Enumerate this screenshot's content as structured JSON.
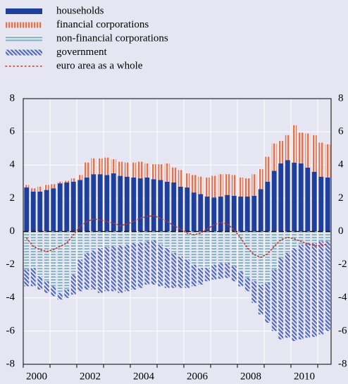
{
  "chart_data": {
    "type": "bar",
    "categories": [
      "2000",
      null,
      null,
      null,
      null,
      null,
      null,
      null,
      "2002",
      null,
      null,
      null,
      null,
      null,
      null,
      null,
      "2004",
      null,
      null,
      null,
      null,
      null,
      null,
      null,
      "2006",
      null,
      null,
      null,
      null,
      null,
      null,
      null,
      "2008",
      null,
      null,
      null,
      null,
      null,
      null,
      null,
      "2010",
      null,
      null,
      null,
      null,
      null
    ],
    "series": [
      {
        "name": "households",
        "type": "bar",
        "pattern": "solid",
        "color": "#1f3f9c",
        "values": [
          2.65,
          2.4,
          2.4,
          2.5,
          2.6,
          2.9,
          2.95,
          3.0,
          3.1,
          3.25,
          3.45,
          3.45,
          3.4,
          3.5,
          3.35,
          3.3,
          3.25,
          3.2,
          3.25,
          3.15,
          3.1,
          3.0,
          2.95,
          2.7,
          2.65,
          2.35,
          2.25,
          2.1,
          2.05,
          2.1,
          2.2,
          2.15,
          2.1,
          2.1,
          2.15,
          2.55,
          3.0,
          3.65,
          4.1,
          4.3,
          4.15,
          4.1,
          3.85,
          3.6,
          3.3,
          3.25
        ]
      },
      {
        "name": "financial corporations",
        "type": "bar",
        "pattern": "vertical",
        "color": "#d9765a",
        "values": [
          0.15,
          0.2,
          0.3,
          0.3,
          0.25,
          0.1,
          0.1,
          0.2,
          0.3,
          0.9,
          0.95,
          0.95,
          1.05,
          0.85,
          0.85,
          0.85,
          0.9,
          1.0,
          0.85,
          0.9,
          0.95,
          1.1,
          0.9,
          1.0,
          0.85,
          1.05,
          1.05,
          1.15,
          1.3,
          1.35,
          1.25,
          1.25,
          1.15,
          1.1,
          1.3,
          1.2,
          1.5,
          1.65,
          1.35,
          1.5,
          2.25,
          1.85,
          2.05,
          2.2,
          2.05,
          2.0
        ]
      },
      {
        "name": "non-financial corporations",
        "type": "bar",
        "pattern": "horizontal",
        "color": "#8fb3c8",
        "values": [
          -2.3,
          -2.2,
          -2.7,
          -3.0,
          -3.3,
          -3.7,
          -3.5,
          -2.6,
          -1.7,
          -1.3,
          -1.15,
          -1.0,
          -0.95,
          -0.9,
          -0.85,
          -0.8,
          -0.7,
          -0.65,
          -0.6,
          -0.55,
          -0.8,
          -1.0,
          -1.3,
          -1.5,
          -1.7,
          -2.0,
          -2.2,
          -2.2,
          -2.0,
          -1.9,
          -1.9,
          -2.1,
          -2.4,
          -2.8,
          -3.0,
          -3.2,
          -3.1,
          -2.3,
          -1.6,
          -1.3,
          -1.0,
          -0.8,
          -0.7,
          -0.7,
          -0.6,
          -0.6
        ]
      },
      {
        "name": "government",
        "type": "bar",
        "pattern": "diagonal",
        "color": "#5a6fc0",
        "values": [
          -1.0,
          -1.1,
          -0.8,
          -0.7,
          -0.6,
          -0.4,
          -0.5,
          -1.2,
          -1.9,
          -2.2,
          -2.35,
          -2.7,
          -2.65,
          -2.7,
          -2.85,
          -2.8,
          -2.8,
          -2.75,
          -2.6,
          -2.65,
          -2.5,
          -2.4,
          -2.1,
          -1.9,
          -1.7,
          -1.3,
          -1.0,
          -0.8,
          -0.9,
          -0.95,
          -0.9,
          -0.9,
          -0.9,
          -0.8,
          -1.3,
          -1.8,
          -2.4,
          -3.7,
          -4.9,
          -5.1,
          -5.6,
          -5.7,
          -5.7,
          -5.65,
          -5.6,
          -5.4
        ]
      },
      {
        "name": "euro area as a whole",
        "type": "line",
        "pattern": "dotted",
        "color": "#c0392b",
        "values": [
          -0.4,
          -0.9,
          -1.1,
          -1.2,
          -1.1,
          -0.9,
          -0.7,
          -0.2,
          0.3,
          0.6,
          0.75,
          0.7,
          0.6,
          0.5,
          0.35,
          0.45,
          0.6,
          0.8,
          0.9,
          0.95,
          0.8,
          0.6,
          0.35,
          0.15,
          -0.1,
          -0.2,
          -0.1,
          0.15,
          0.4,
          0.55,
          0.45,
          0.1,
          -0.4,
          -1.0,
          -1.4,
          -1.55,
          -1.35,
          -0.9,
          -0.5,
          -0.35,
          -0.45,
          -0.6,
          -0.75,
          -0.85,
          -0.85,
          -0.75
        ]
      }
    ],
    "ylim": [
      -8,
      8
    ],
    "yticks": [
      -8,
      -6,
      -4,
      -2,
      0,
      2,
      4,
      6,
      8
    ],
    "grid": true,
    "legend": "top-left"
  }
}
